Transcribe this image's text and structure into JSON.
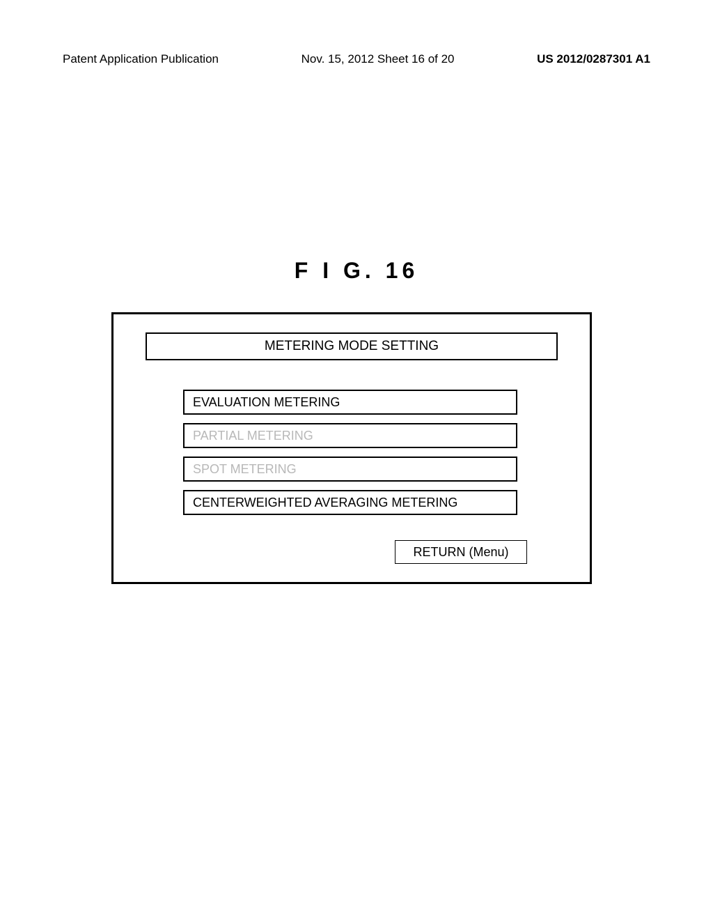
{
  "header": {
    "left": "Patent Application Publication",
    "center": "Nov. 15, 2012  Sheet 16 of 20",
    "right": "US 2012/0287301 A1"
  },
  "figure_label": "F I G.   16",
  "panel": {
    "title": "METERING MODE SETTING",
    "options": [
      {
        "label": "EVALUATION METERING",
        "active": true
      },
      {
        "label": "PARTIAL METERING",
        "active": false
      },
      {
        "label": "SPOT METERING",
        "active": false
      },
      {
        "label": "CENTERWEIGHTED AVERAGING METERING",
        "active": true
      }
    ],
    "return_label": "RETURN (Menu)"
  },
  "colors": {
    "text_active": "#000000",
    "text_inactive": "#b8b8b8",
    "border": "#000000",
    "background": "#ffffff"
  }
}
